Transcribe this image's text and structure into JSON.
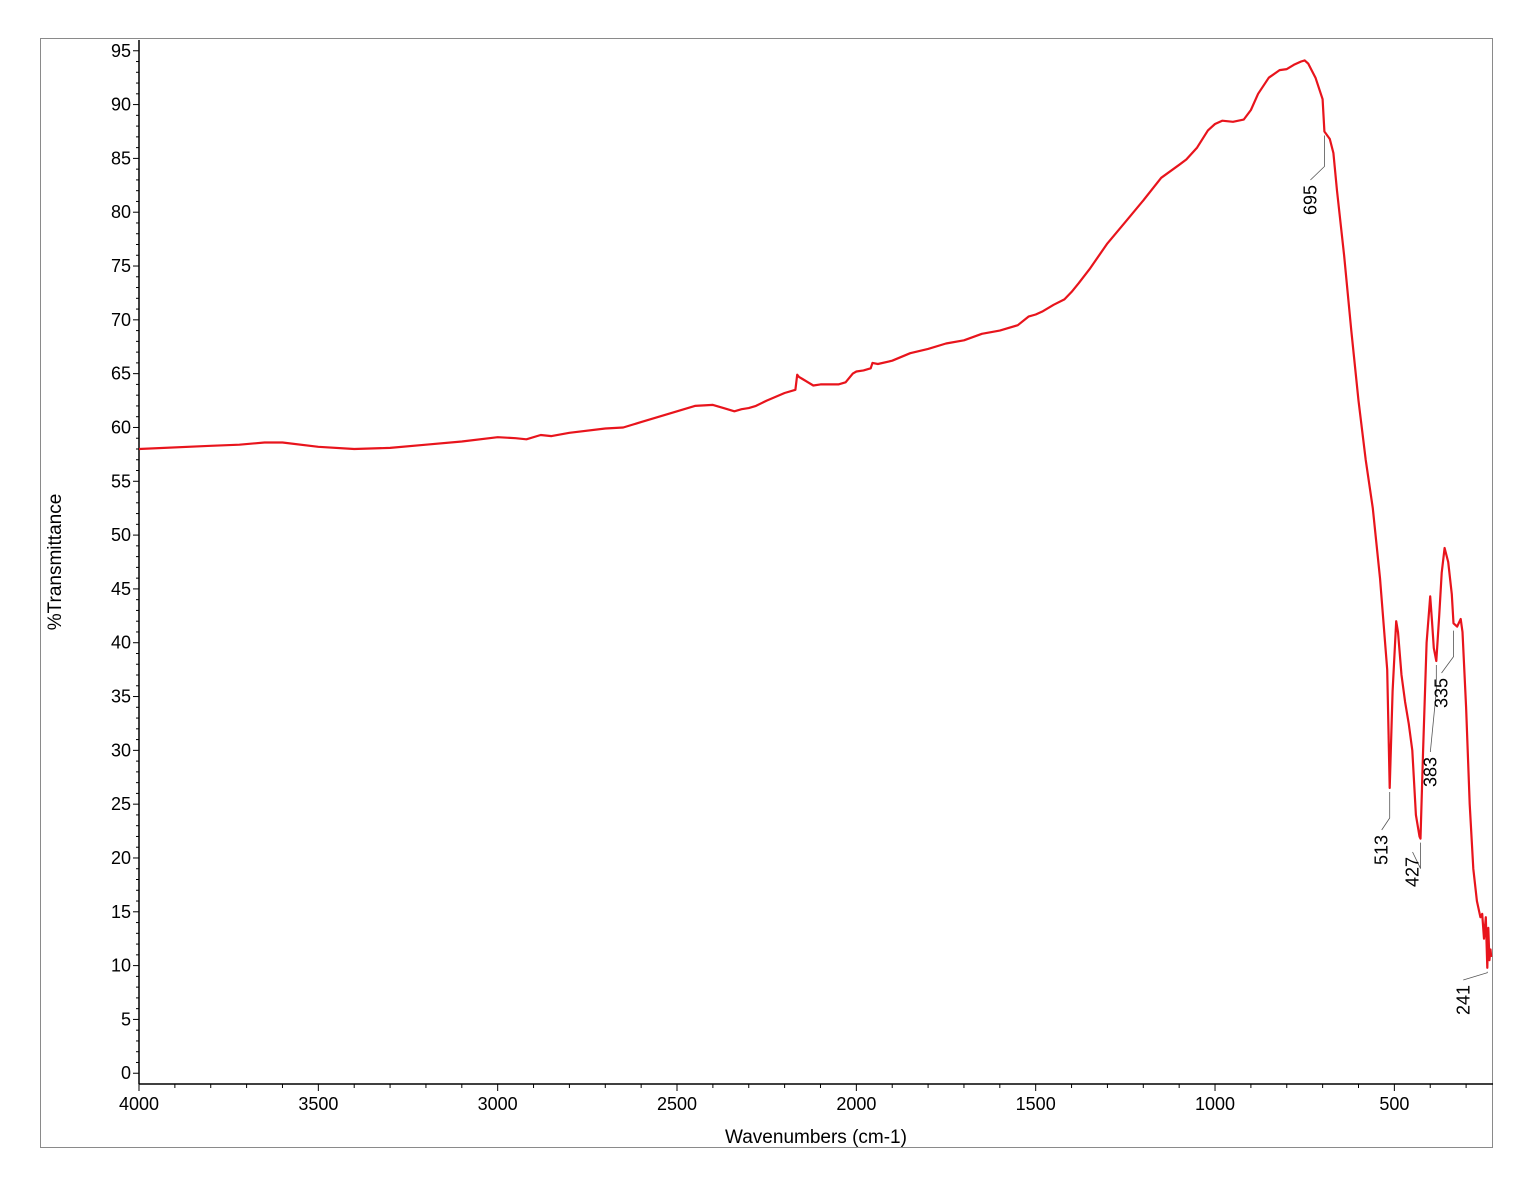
{
  "chart_data": {
    "type": "line",
    "xlabel": "Wavenumbers (cm-1)",
    "ylabel": "%Transmittance",
    "xlim": [
      4000,
      225
    ],
    "ylim": [
      -1,
      96
    ],
    "x_ticks": [
      4000,
      3500,
      3000,
      2500,
      2000,
      1500,
      1000,
      500
    ],
    "y_ticks": [
      0,
      5,
      10,
      15,
      20,
      25,
      30,
      35,
      40,
      45,
      50,
      55,
      60,
      65,
      70,
      75,
      80,
      85,
      90,
      95
    ],
    "grid": false,
    "line_color": "#e8141c",
    "series": [
      {
        "x": [
          4000,
          3800,
          3720,
          3650,
          3600,
          3500,
          3400,
          3300,
          3200,
          3100,
          3000,
          2950,
          2920,
          2880,
          2850,
          2800,
          2700,
          2650,
          2600,
          2500,
          2450,
          2400,
          2370,
          2340,
          2320,
          2300,
          2280,
          2250,
          2200,
          2170,
          2165,
          2160,
          2150,
          2120,
          2100,
          2050,
          2030,
          2010,
          2000,
          1980,
          1960,
          1955,
          1940,
          1900,
          1850,
          1800,
          1750,
          1700,
          1650,
          1600,
          1550,
          1520,
          1500,
          1480,
          1450,
          1420,
          1400,
          1380,
          1350,
          1300,
          1250,
          1200,
          1150,
          1100,
          1080,
          1050,
          1020,
          1000,
          980,
          950,
          920,
          900,
          880,
          850,
          820,
          800,
          780,
          760,
          750,
          740,
          720,
          700,
          695,
          680,
          670,
          660,
          640,
          620,
          600,
          580,
          560,
          540,
          520,
          513,
          505,
          495,
          490,
          480,
          470,
          460,
          450,
          440,
          430,
          427,
          420,
          410,
          400,
          395,
          390,
          383,
          375,
          368,
          360,
          350,
          340,
          335,
          325,
          315,
          310,
          300,
          290,
          280,
          270,
          260,
          255,
          250,
          245,
          241,
          238,
          235,
          232,
          230
        ],
        "y": [
          58.0,
          58.3,
          58.4,
          58.6,
          58.6,
          58.2,
          58.0,
          58.1,
          58.4,
          58.7,
          59.1,
          59.0,
          58.9,
          59.3,
          59.2,
          59.5,
          59.9,
          60.0,
          60.5,
          61.5,
          62.0,
          62.1,
          61.8,
          61.5,
          61.7,
          61.8,
          62.0,
          62.5,
          63.2,
          63.5,
          64.9,
          64.7,
          64.5,
          63.9,
          64.0,
          64.0,
          64.2,
          65.0,
          65.2,
          65.3,
          65.5,
          66.0,
          65.9,
          66.2,
          66.9,
          67.3,
          67.8,
          68.1,
          68.7,
          69.0,
          69.5,
          70.3,
          70.5,
          70.8,
          71.4,
          71.9,
          72.6,
          73.4,
          74.7,
          77.1,
          79.1,
          81.1,
          83.2,
          84.4,
          84.9,
          86.0,
          87.6,
          88.2,
          88.5,
          88.4,
          88.6,
          89.5,
          91.0,
          92.5,
          93.2,
          93.3,
          93.7,
          94.0,
          94.1,
          93.8,
          92.5,
          90.5,
          87.5,
          86.8,
          85.5,
          82.0,
          76.0,
          69.0,
          62.5,
          57.0,
          52.5,
          46.0,
          37.5,
          26.5,
          35.5,
          42.0,
          41.0,
          37.0,
          34.5,
          32.5,
          30.0,
          24.0,
          22.0,
          21.8,
          30.0,
          40.0,
          44.3,
          42.0,
          39.5,
          38.3,
          42.5,
          46.5,
          48.8,
          47.5,
          44.5,
          41.8,
          41.5,
          42.2,
          41.0,
          34.0,
          25.0,
          19.0,
          16.0,
          14.5,
          14.8,
          12.5,
          14.5,
          9.8,
          13.5,
          10.5,
          11.5,
          10.8
        ]
      }
    ],
    "annotations": [
      {
        "label": "695",
        "x": 695,
        "y": 87.5
      },
      {
        "label": "513",
        "x": 513,
        "y": 26.5
      },
      {
        "label": "427",
        "x": 427,
        "y": 21.8
      },
      {
        "label": "383",
        "x": 383,
        "y": 38.3
      },
      {
        "label": "335",
        "x": 335,
        "y": 41.5
      },
      {
        "label": "241",
        "x": 241,
        "y": 9.8
      }
    ]
  }
}
